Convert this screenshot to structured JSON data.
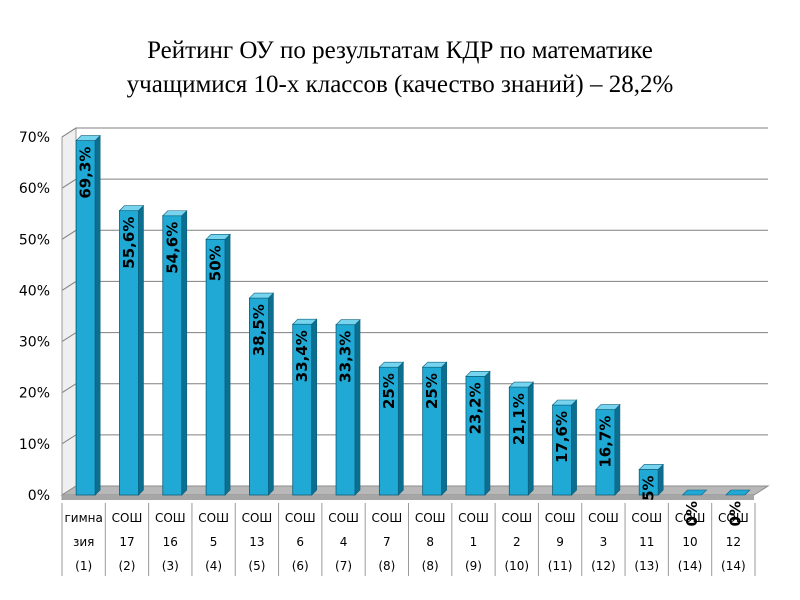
{
  "title_lines": [
    "Рейтинг ОУ по результатам КДР по математике",
    "учащимися 10-х классов (качество знаний) – 28,2%"
  ],
  "colors": {
    "bar_front": "#1fa9d4",
    "bar_side": "#0d6f90",
    "bar_top": "#77d4ee",
    "floor": "#b8b8b8",
    "grid": "#808080"
  },
  "chart_data": {
    "type": "bar",
    "title": "Рейтинг ОУ по результатам КДР по математике учащимися 10-х классов (качество знаний) – 28,2%",
    "ylim": [
      0,
      70
    ],
    "yticks": [
      "0%",
      "10%",
      "20%",
      "30%",
      "40%",
      "50%",
      "60%",
      "70%"
    ],
    "grid": true,
    "categories": [
      [
        "гимна",
        "зия",
        "(1)"
      ],
      [
        "СОШ",
        "17",
        "(2)"
      ],
      [
        "СОШ",
        "16",
        "(3)"
      ],
      [
        "СОШ",
        "5",
        "(4)"
      ],
      [
        "СОШ",
        "13",
        "(5)"
      ],
      [
        "СОШ",
        "6",
        "(6)"
      ],
      [
        "СОШ",
        "4",
        "(7)"
      ],
      [
        "СОШ",
        "7",
        "(8)"
      ],
      [
        "СОШ",
        "8",
        "(8)"
      ],
      [
        "СОШ",
        "1",
        "(9)"
      ],
      [
        "СОШ",
        "2",
        "(10)"
      ],
      [
        "СОШ",
        "9",
        "(11)"
      ],
      [
        "СОШ",
        "3",
        "(12)"
      ],
      [
        "СОШ",
        "11",
        "(13)"
      ],
      [
        "СОШ",
        "10",
        "(14)"
      ],
      [
        "СОШ",
        "12",
        "(14)"
      ]
    ],
    "values": [
      69.3,
      55.6,
      54.6,
      50,
      38.5,
      33.4,
      33.3,
      25,
      25,
      23.2,
      21.1,
      17.6,
      16.7,
      5,
      0,
      0
    ],
    "data_labels": [
      "69,3%",
      "55,6%",
      "54,6%",
      "50%",
      "38,5%",
      "33,4%",
      "33,3%",
      "25%",
      "25%",
      "23,2%",
      "21,1%",
      "17,6%",
      "16,7%",
      "5%",
      "0%",
      "0%"
    ]
  }
}
